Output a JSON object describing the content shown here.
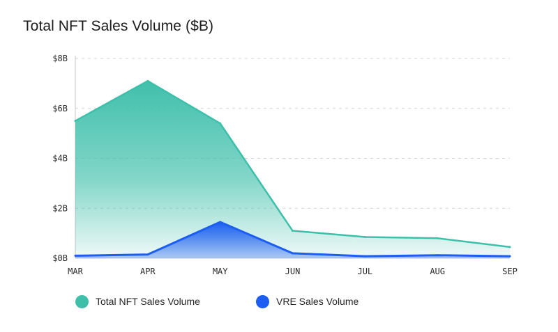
{
  "chart_data": {
    "type": "area",
    "title": "Total NFT Sales Volume ($B)",
    "categories": [
      "MAR",
      "APR",
      "MAY",
      "JUN",
      "JUL",
      "AUG",
      "SEP"
    ],
    "yticks": [
      "$0B",
      "$2B",
      "$4B",
      "$6B",
      "$8B"
    ],
    "ylim": [
      0,
      8
    ],
    "grid": true,
    "legend_position": "bottom",
    "series": [
      {
        "name": "Total NFT Sales Volume",
        "color": "#3dbfaa",
        "values": [
          5.5,
          7.1,
          5.4,
          1.1,
          0.85,
          0.8,
          0.45
        ]
      },
      {
        "name": "VRE Sales Volume",
        "color": "#1c5ef2",
        "values": [
          0.1,
          0.15,
          1.45,
          0.2,
          0.08,
          0.12,
          0.08
        ]
      }
    ]
  }
}
